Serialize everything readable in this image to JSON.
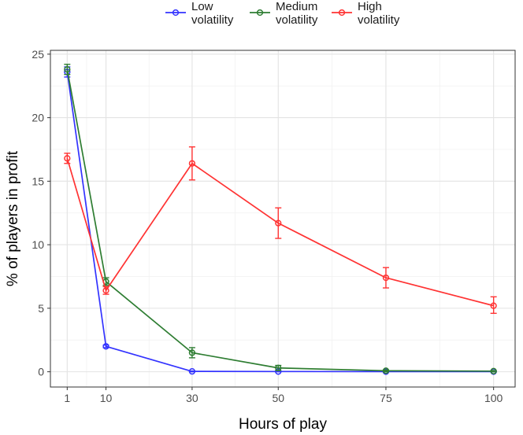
{
  "chart_data": {
    "type": "line",
    "xlabel": "Hours of play",
    "ylabel": "% of players in profit",
    "x": [
      1,
      10,
      30,
      50,
      75,
      100
    ],
    "x_ticks": [
      "1",
      "10",
      "30",
      "50",
      "75",
      "100"
    ],
    "y_ticks": [
      "0",
      "5",
      "10",
      "15",
      "20",
      "25"
    ],
    "xlim": [
      -2.9,
      105
    ],
    "ylim": [
      -1.2,
      25.3
    ],
    "grid": true,
    "legend_position": "top",
    "series": [
      {
        "name": "Low volatility",
        "label_lines": [
          "Low",
          "volatility"
        ],
        "color": "#3333ff",
        "values": [
          23.6,
          2.0,
          0.03,
          0.02,
          0.01,
          0.01
        ],
        "err_low": [
          23.2,
          1.9,
          0.0,
          0.0,
          0.0,
          0.0
        ],
        "err_high": [
          24.0,
          2.1,
          0.06,
          0.04,
          0.03,
          0.02
        ]
      },
      {
        "name": "Medium volatility",
        "label_lines": [
          "Medium",
          "volatility"
        ],
        "color": "#2e7d32",
        "values": [
          23.8,
          7.1,
          1.5,
          0.3,
          0.08,
          0.05
        ],
        "err_low": [
          23.4,
          6.8,
          1.1,
          0.1,
          0.0,
          0.0
        ],
        "err_high": [
          24.2,
          7.4,
          1.9,
          0.5,
          0.15,
          0.1
        ]
      },
      {
        "name": "High volatility",
        "label_lines": [
          "High",
          "volatility"
        ],
        "color": "#ff3333",
        "values": [
          16.8,
          6.4,
          16.4,
          11.7,
          7.4,
          5.2
        ],
        "err_low": [
          16.4,
          6.1,
          15.1,
          10.5,
          6.6,
          4.6
        ],
        "err_high": [
          17.2,
          6.7,
          17.7,
          12.9,
          8.2,
          5.9
        ]
      }
    ]
  }
}
